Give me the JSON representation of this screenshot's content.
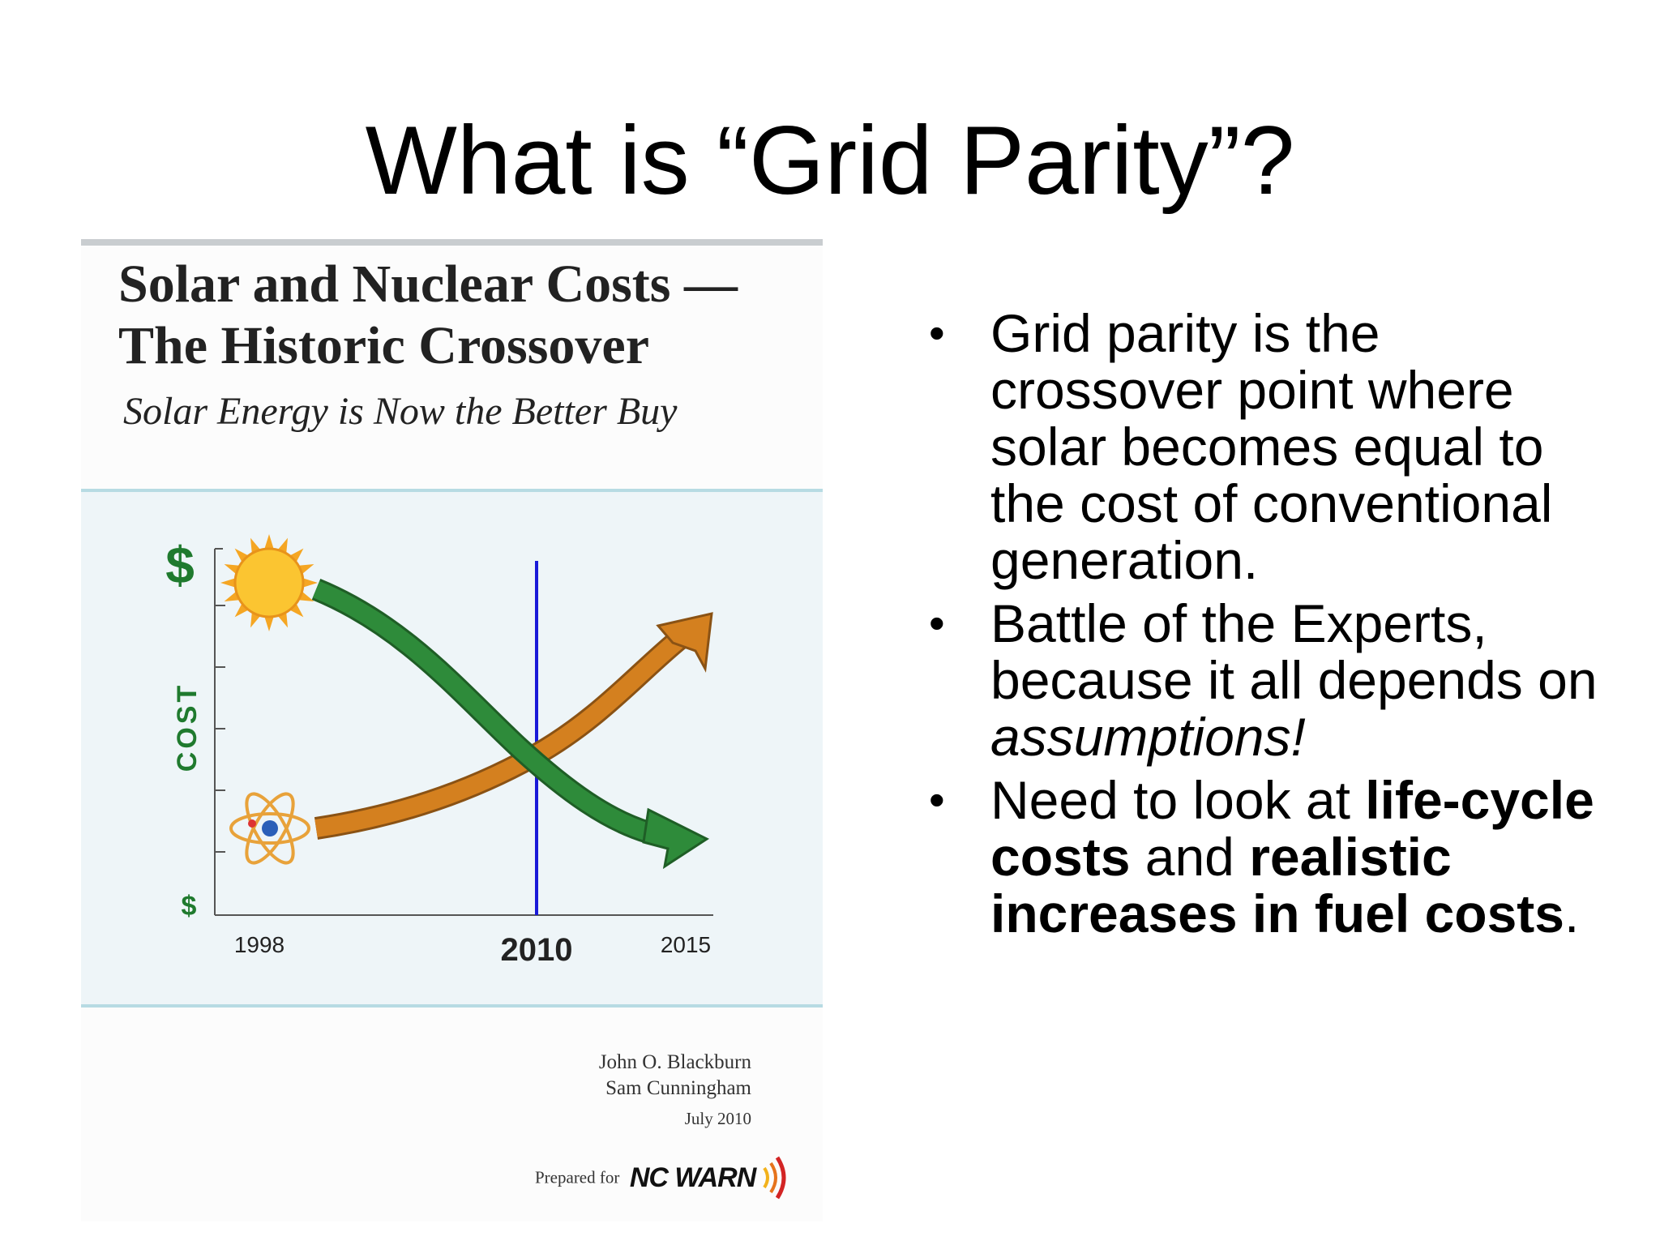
{
  "slide": {
    "title": "What is “Grid Parity”?"
  },
  "cover": {
    "title_line1": "Solar and Nuclear Costs —",
    "title_line2": "The Historic Crossover",
    "subtitle": "Solar Energy is Now the Better Buy",
    "authors": [
      "John O. Blackburn",
      "Sam Cunningham"
    ],
    "date": "July 2010",
    "prepared_for_label": "Prepared for",
    "organization": "NC WARN"
  },
  "bullets": [
    {
      "segments": [
        {
          "text": "Grid parity is the crossover point where solar becomes equal to the cost of conventional generation.",
          "style": "normal"
        }
      ]
    },
    {
      "segments": [
        {
          "text": "Battle of the Experts, because it all depends on ",
          "style": "normal"
        },
        {
          "text": "assumptions!",
          "style": "italic"
        }
      ]
    },
    {
      "segments": [
        {
          "text": "Need to look at ",
          "style": "normal"
        },
        {
          "text": "life-cycle costs",
          "style": "bold"
        },
        {
          "text": " and ",
          "style": "normal"
        },
        {
          "text": "realistic increases in fuel costs",
          "style": "bold"
        },
        {
          "text": ".",
          "style": "normal"
        }
      ]
    }
  ],
  "chart_data": {
    "type": "line",
    "title": "",
    "ylabel": "COST",
    "y_top_label": "$",
    "y_bottom_label": "$",
    "x_ticks": [
      "1998",
      "2010",
      "2015"
    ],
    "highlight_x": "2010",
    "xlim": [
      1998,
      2015
    ],
    "ylim": [
      0,
      10
    ],
    "series": [
      {
        "name": "",
        "icon": "sun-icon",
        "color": "#2e8b3a",
        "x": [
          1998,
          2002,
          2006,
          2010,
          2013,
          2015
        ],
        "y": [
          9.4,
          8.6,
          7.0,
          5.0,
          3.4,
          2.7
        ]
      },
      {
        "name": "",
        "icon": "atom-icon",
        "color": "#d4801f",
        "x": [
          1998,
          2002,
          2006,
          2010,
          2013,
          2015
        ],
        "y": [
          2.8,
          3.3,
          4.0,
          5.0,
          6.6,
          8.2
        ]
      }
    ],
    "colors": {
      "crossover_line": "#1a1ad8",
      "cost_label": "#1f7a2e"
    }
  }
}
